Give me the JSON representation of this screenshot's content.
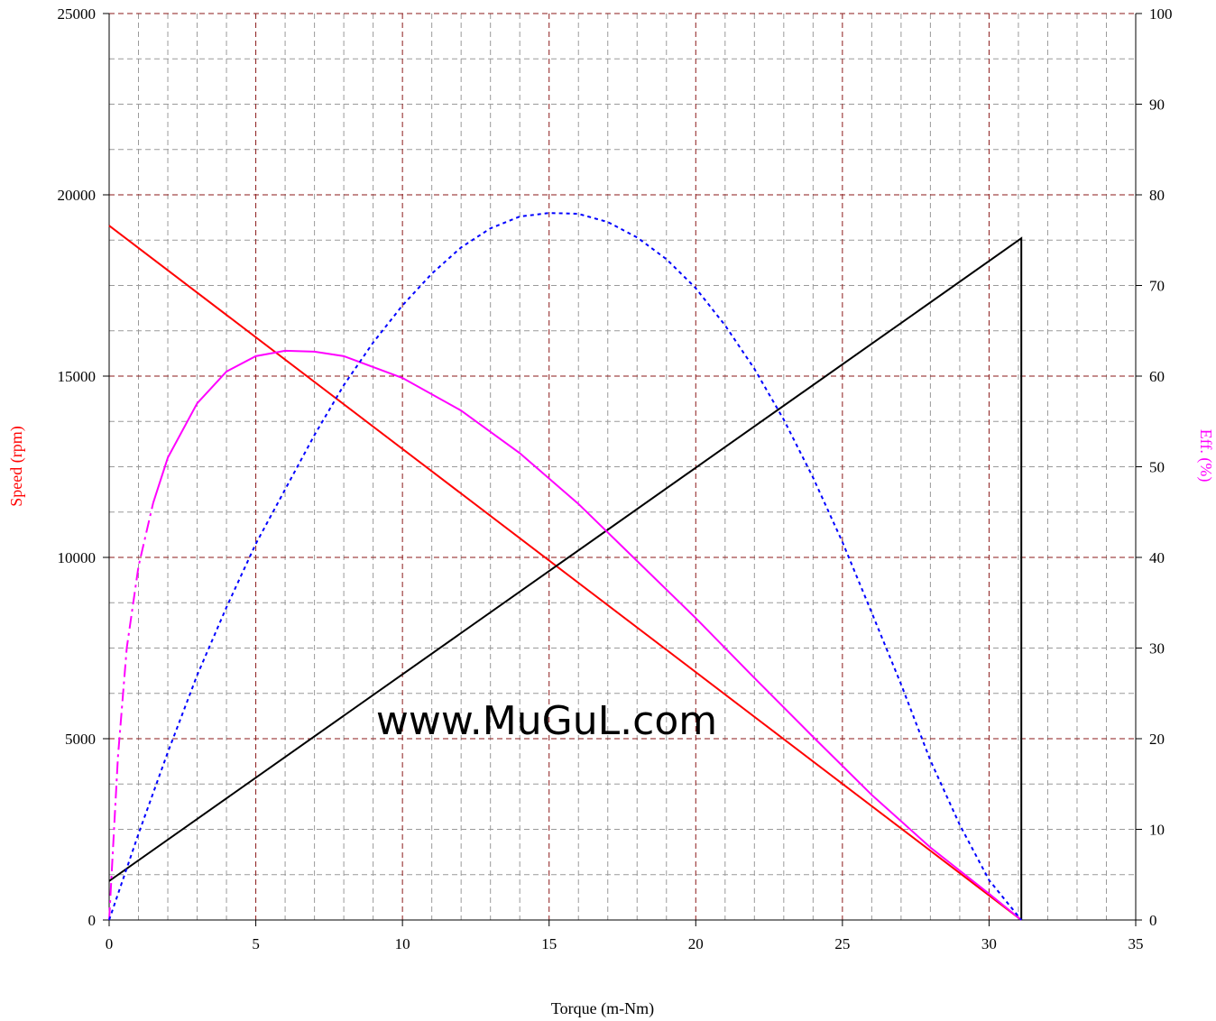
{
  "chart_data": {
    "type": "line",
    "title": "",
    "xlabel": "Torque (m-Nm)",
    "ylabel_left": "Speed (rpm)",
    "ylabel_right": "Eff. (%)",
    "xlim": [
      0,
      35
    ],
    "ylim_left": [
      0,
      25000
    ],
    "ylim_right": [
      0,
      100
    ],
    "x_ticks": [
      "0",
      "5",
      "10",
      "15",
      "20",
      "25",
      "30",
      "35"
    ],
    "y_left_ticks": [
      "0",
      "5000",
      "10000",
      "15000",
      "20000",
      "25000"
    ],
    "y_right_ticks": [
      "0",
      "10",
      "20",
      "30",
      "40",
      "50",
      "60",
      "70",
      "80",
      "90",
      "100"
    ],
    "grid": true,
    "watermark": "www.MuGuL.com",
    "stall_torque": 31.1,
    "series": [
      {
        "color": "#ff0000",
        "axis": "left",
        "style": "solid",
        "x": [
          0,
          31.1
        ],
        "y": [
          19150,
          0
        ]
      },
      {
        "color": "#000000",
        "axis": "right",
        "style": "solid",
        "x": [
          0,
          31.1,
          31.1
        ],
        "y": [
          4.3,
          75.2,
          0
        ]
      },
      {
        "color": "#ff00ff",
        "axis": "right",
        "style": "solid-with-dashdot-start",
        "x": [
          0,
          0.3,
          0.6,
          1,
          1.5,
          2,
          3,
          4,
          5,
          6,
          7,
          8,
          10,
          12,
          14,
          16,
          18,
          20,
          22,
          24,
          26,
          28,
          30,
          31.1
        ],
        "y": [
          0,
          18,
          30,
          39,
          46,
          51,
          57,
          60.5,
          62.2,
          62.8,
          62.7,
          62.2,
          59.8,
          56.2,
          51.5,
          45.9,
          39.6,
          33.3,
          26.7,
          20.2,
          13.8,
          8.0,
          2.9,
          0
        ]
      },
      {
        "color": "#0000ff",
        "axis": "right",
        "style": "dotted",
        "x": [
          0,
          1,
          2,
          3,
          4,
          5,
          6,
          7,
          8,
          9,
          10,
          11,
          12,
          13,
          14,
          15,
          16,
          17,
          18,
          19,
          20,
          21,
          22,
          23,
          24,
          25,
          26,
          27,
          28,
          29,
          30,
          31.1
        ],
        "y": [
          0,
          9.5,
          18.5,
          27,
          34.5,
          41.5,
          47.5,
          53.5,
          59,
          63.7,
          67.8,
          71.3,
          74.2,
          76.3,
          77.6,
          78.0,
          77.9,
          77.0,
          75.3,
          72.9,
          69.7,
          65.6,
          60.8,
          55.2,
          48.8,
          41.7,
          33.9,
          26.0,
          17.6,
          10.5,
          4.4,
          0
        ]
      }
    ]
  }
}
